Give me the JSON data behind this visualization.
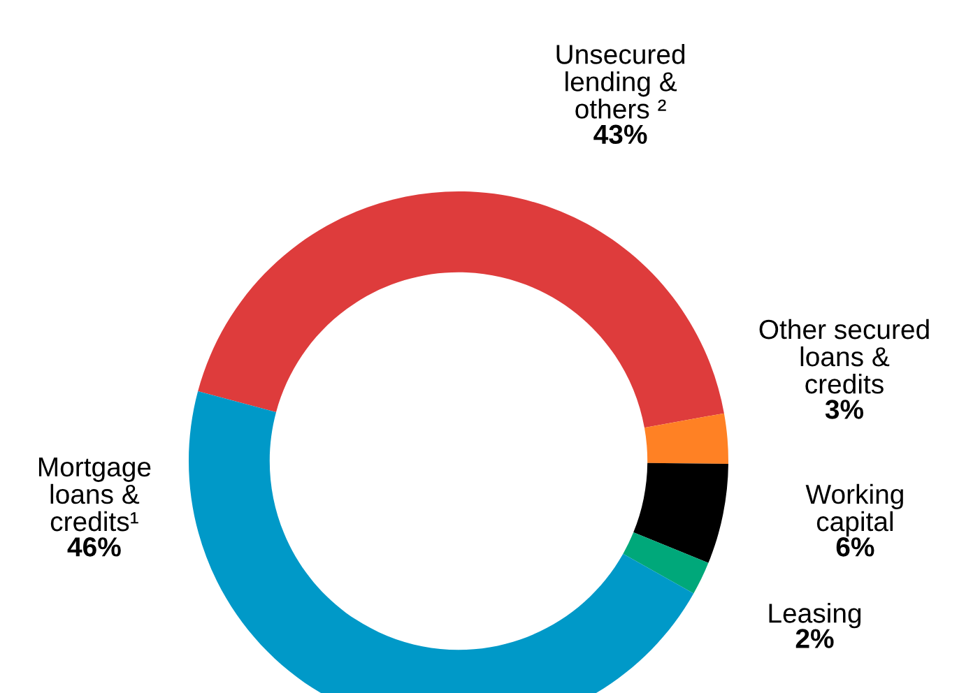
{
  "chart_data": {
    "type": "donut",
    "categories": [
      "Unsecured\nlending &\nothers ²",
      "Other secured\nloans &\ncredits",
      "Working\ncapital",
      "Leasing",
      "Mortgage\nloans &\ncredits¹"
    ],
    "values": [
      43,
      3,
      6,
      2,
      46
    ],
    "colors": [
      "#de3c3c",
      "#ff8124",
      "#000000",
      "#00a87a",
      "#0099c8"
    ],
    "value_labels": [
      "43%",
      "3%",
      "6%",
      "2%",
      "46%"
    ],
    "legend": false
  }
}
